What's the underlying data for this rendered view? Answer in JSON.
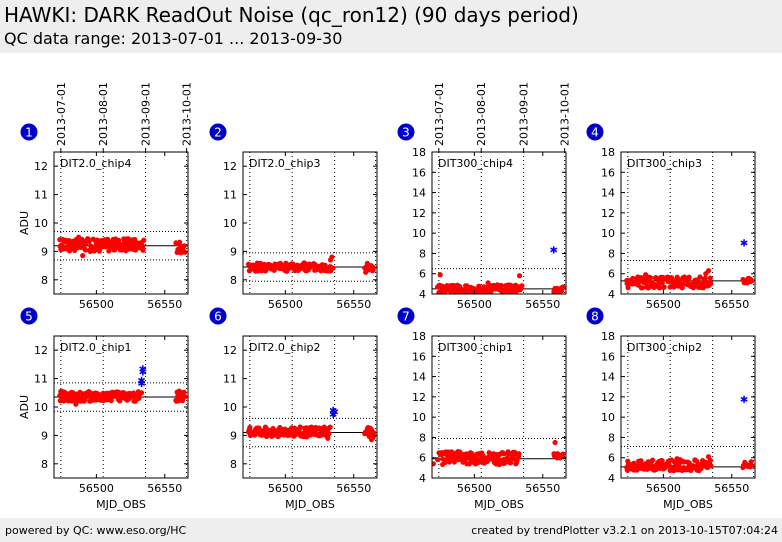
{
  "header": {
    "title": "HAWKI: DARK ReadOut Noise (qc_ron12) (90 days period)",
    "subtitle": "QC data range: 2013-07-01 ... 2013-09-30"
  },
  "footer": {
    "left": "powered by QC: www.eso.org/HC",
    "right": "created by trendPlotter v3.2.1 on 2013-10-15T07:04:24"
  },
  "colors": {
    "points": "#ff0000",
    "outliers": "#0000ff",
    "badge": "#0000cc",
    "median_line": "#000000",
    "header_bg": "#eeeeee"
  },
  "chart_data": [
    {
      "id": "1",
      "type": "scatter",
      "label": "DIT2.0_chip4",
      "ylabel": "ADU",
      "xlabel": "",
      "xlim": [
        56469,
        56567
      ],
      "ylim": [
        7.5,
        12.5
      ],
      "yticks": [
        8,
        9,
        10,
        11,
        12
      ],
      "xticks": [
        56500,
        56550
      ],
      "date_ticks": [
        "2013-07-01",
        "2013-08-01",
        "2013-09-01",
        "2013-10-01"
      ],
      "date_tick_mjd": [
        56474,
        56505,
        56536,
        56566
      ],
      "median": 9.2,
      "limits": [
        8.7,
        9.7
      ],
      "segments": [
        {
          "x_start": 56473,
          "x_end": 56535,
          "y_min": 9.0,
          "y_max": 9.45
        },
        {
          "x_start": 56558,
          "x_end": 56565,
          "y_min": 8.95,
          "y_max": 9.35
        }
      ],
      "points": [
        [
          56487,
          9.5
        ],
        [
          56490,
          8.85
        ],
        [
          56515,
          9.35
        ],
        [
          56528,
          9.42
        ],
        [
          56480,
          9.38
        ]
      ],
      "outliers": []
    },
    {
      "id": "2",
      "type": "scatter",
      "label": "DIT2.0_chip3",
      "ylabel": "",
      "xlabel": "",
      "xlim": [
        56469,
        56567
      ],
      "ylim": [
        7.5,
        12.5
      ],
      "yticks": [
        8,
        9,
        10,
        11,
        12
      ],
      "xticks": [
        56500,
        56550
      ],
      "date_ticks": [],
      "date_tick_mjd": [
        56474,
        56505,
        56536,
        56566
      ],
      "median": 8.45,
      "limits": [
        7.95,
        8.95
      ],
      "segments": [
        {
          "x_start": 56473,
          "x_end": 56535,
          "y_min": 8.3,
          "y_max": 8.6
        },
        {
          "x_start": 56558,
          "x_end": 56565,
          "y_min": 8.25,
          "y_max": 8.6
        }
      ],
      "points": [
        [
          56534,
          8.8
        ],
        [
          56533,
          8.7
        ]
      ],
      "outliers": []
    },
    {
      "id": "3",
      "type": "scatter",
      "label": "DIT300_chip4",
      "ylabel": "",
      "xlabel": "",
      "xlim": [
        56469,
        56567
      ],
      "ylim": [
        4,
        18
      ],
      "yticks": [
        4,
        6,
        8,
        10,
        12,
        14,
        16,
        18
      ],
      "xticks": [
        56500,
        56550
      ],
      "date_ticks": [
        "2013-07-01",
        "2013-08-01",
        "2013-09-01",
        "2013-10-01"
      ],
      "date_tick_mjd": [
        56474,
        56505,
        56536,
        56566
      ],
      "median": 4.5,
      "limits": [
        2.5,
        6.5
      ],
      "segments": [
        {
          "x_start": 56473,
          "x_end": 56535,
          "y_min": 4.1,
          "y_max": 4.9
        },
        {
          "x_start": 56558,
          "x_end": 56565,
          "y_min": 4.2,
          "y_max": 4.7
        }
      ],
      "points": [
        [
          56475,
          5.9
        ],
        [
          56533,
          5.8
        ],
        [
          56510,
          5.1
        ]
      ],
      "outliers": [
        [
          56558,
          8.4
        ]
      ]
    },
    {
      "id": "4",
      "type": "scatter",
      "label": "DIT300_chip3",
      "ylabel": "",
      "xlabel": "",
      "xlim": [
        56469,
        56567
      ],
      "ylim": [
        4,
        18
      ],
      "yticks": [
        4,
        6,
        8,
        10,
        12,
        14,
        16,
        18
      ],
      "xticks": [
        56500,
        56550
      ],
      "date_ticks": [],
      "date_tick_mjd": [
        56474,
        56505,
        56536,
        56566
      ],
      "median": 5.3,
      "limits": [
        3.3,
        7.3
      ],
      "segments": [
        {
          "x_start": 56473,
          "x_end": 56535,
          "y_min": 4.6,
          "y_max": 5.7
        },
        {
          "x_start": 56558,
          "x_end": 56565,
          "y_min": 5.1,
          "y_max": 5.6
        }
      ],
      "points": [
        [
          56533,
          6.3
        ],
        [
          56531,
          6.0
        ],
        [
          56487,
          5.9
        ]
      ],
      "outliers": [
        [
          56559,
          9.1
        ]
      ]
    },
    {
      "id": "5",
      "type": "scatter",
      "label": "DIT2.0_chip1",
      "ylabel": "ADU",
      "xlabel": "MJD_OBS",
      "xlim": [
        56469,
        56567
      ],
      "ylim": [
        7.5,
        12.5
      ],
      "yticks": [
        8,
        9,
        10,
        11,
        12
      ],
      "xticks": [
        56500,
        56550
      ],
      "date_ticks": [],
      "date_tick_mjd": [
        56474,
        56505,
        56536,
        56566
      ],
      "median": 10.35,
      "limits": [
        9.85,
        10.85
      ],
      "segments": [
        {
          "x_start": 56473,
          "x_end": 56532,
          "y_min": 10.2,
          "y_max": 10.55
        },
        {
          "x_start": 56558,
          "x_end": 56565,
          "y_min": 10.15,
          "y_max": 10.6
        }
      ],
      "points": [
        [
          56485,
          10.1
        ],
        [
          56533,
          10.5
        ]
      ],
      "outliers": [
        [
          56534,
          11.35
        ],
        [
          56534,
          11.25
        ],
        [
          56533,
          10.95
        ],
        [
          56533,
          10.85
        ]
      ]
    },
    {
      "id": "6",
      "type": "scatter",
      "label": "DIT2.0_chip2",
      "ylabel": "",
      "xlabel": "MJD_OBS",
      "xlim": [
        56469,
        56567
      ],
      "ylim": [
        7.5,
        12.5
      ],
      "yticks": [
        8,
        9,
        10,
        11,
        12
      ],
      "xticks": [
        56500,
        56550
      ],
      "date_ticks": [],
      "date_tick_mjd": [
        56474,
        56505,
        56536,
        56566
      ],
      "median": 9.1,
      "limits": [
        8.6,
        9.6
      ],
      "segments": [
        {
          "x_start": 56473,
          "x_end": 56533,
          "y_min": 8.95,
          "y_max": 9.3
        },
        {
          "x_start": 56558,
          "x_end": 56565,
          "y_min": 8.9,
          "y_max": 9.3
        }
      ],
      "points": [
        [
          56531,
          8.9
        ],
        [
          56563,
          8.85
        ]
      ],
      "outliers": [
        [
          56535,
          9.9
        ],
        [
          56535,
          9.75
        ],
        [
          56536,
          9.85
        ]
      ]
    },
    {
      "id": "7",
      "type": "scatter",
      "label": "DIT300_chip1",
      "ylabel": "",
      "xlabel": "MJD_OBS",
      "xlim": [
        56469,
        56567
      ],
      "ylim": [
        4,
        18
      ],
      "yticks": [
        4,
        6,
        8,
        10,
        12,
        14,
        16,
        18
      ],
      "xticks": [
        56500,
        56550
      ],
      "date_ticks": [],
      "date_tick_mjd": [
        56474,
        56505,
        56536,
        56566
      ],
      "median": 5.9,
      "limits": [
        3.9,
        7.9
      ],
      "segments": [
        {
          "x_start": 56473,
          "x_end": 56533,
          "y_min": 5.3,
          "y_max": 6.6
        },
        {
          "x_start": 56558,
          "x_end": 56565,
          "y_min": 5.9,
          "y_max": 6.4
        }
      ],
      "points": [
        [
          56559,
          7.5
        ],
        [
          56488,
          6.6
        ],
        [
          56470,
          5.4
        ]
      ],
      "outliers": []
    },
    {
      "id": "8",
      "type": "scatter",
      "label": "DIT300_chip2",
      "ylabel": "",
      "xlabel": "MJD_OBS",
      "xlim": [
        56469,
        56567
      ],
      "ylim": [
        4,
        18
      ],
      "yticks": [
        4,
        6,
        8,
        10,
        12,
        14,
        16,
        18
      ],
      "xticks": [
        56500,
        56550
      ],
      "date_ticks": [],
      "date_tick_mjd": [
        56474,
        56505,
        56536,
        56566
      ],
      "median": 5.1,
      "limits": [
        3.1,
        7.1
      ],
      "segments": [
        {
          "x_start": 56473,
          "x_end": 56535,
          "y_min": 4.7,
          "y_max": 5.8
        },
        {
          "x_start": 56558,
          "x_end": 56565,
          "y_min": 5.0,
          "y_max": 5.6
        }
      ],
      "points": [
        [
          56533,
          6.1
        ],
        [
          56510,
          5.9
        ]
      ],
      "outliers": [
        [
          56559,
          11.8
        ]
      ]
    }
  ]
}
